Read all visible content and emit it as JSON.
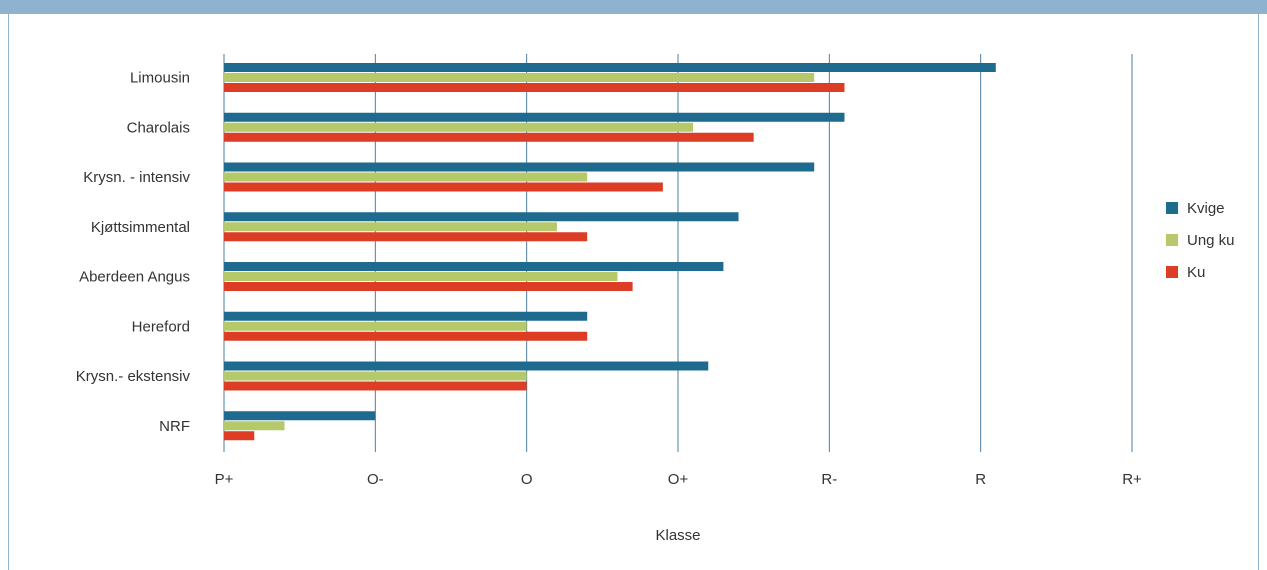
{
  "chart_data": {
    "type": "bar",
    "orientation": "horizontal",
    "categories": [
      "Limousin",
      "Charolais",
      "Krysn. - intensiv",
      "Kjøttsimmental",
      "Aberdeen Angus",
      "Hereford",
      "Krysn.- ekstensiv",
      "NRF"
    ],
    "x_ticks": [
      "P+",
      "O-",
      "O",
      "O+",
      "R-",
      "R",
      "R+"
    ],
    "xlim": [
      0,
      6
    ],
    "xlabel": "Klasse",
    "series": [
      {
        "name": "Kvige",
        "color": "#1f6a8f",
        "values": [
          5.1,
          4.1,
          3.9,
          3.4,
          3.3,
          2.4,
          3.2,
          1.0
        ]
      },
      {
        "name": "Ung ku",
        "color": "#b5c86a",
        "values": [
          3.9,
          3.1,
          2.4,
          2.2,
          2.6,
          2.0,
          2.0,
          0.4
        ]
      },
      {
        "name": "Ku",
        "color": "#dc3d24",
        "values": [
          4.1,
          3.5,
          2.9,
          2.4,
          2.7,
          2.4,
          2.0,
          0.2
        ]
      }
    ],
    "grid": "vertical",
    "legend": "right"
  }
}
